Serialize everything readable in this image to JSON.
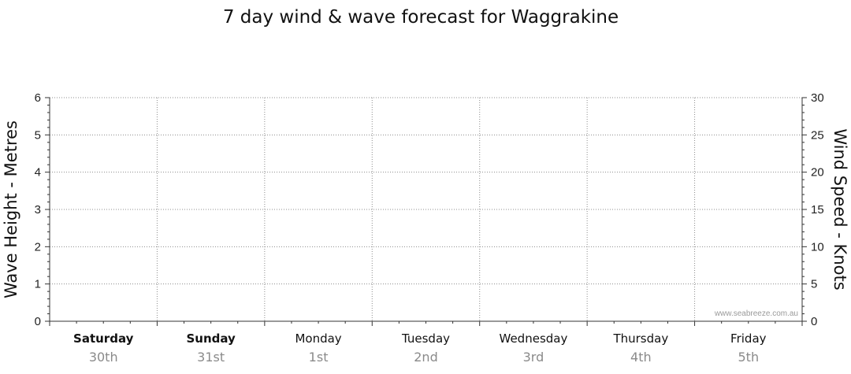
{
  "chart_data": {
    "type": "line",
    "title": "7 day wind & wave forecast for Waggrakine",
    "ylabel_left": "Wave Height - Metres",
    "ylabel_right": "Wind Speed - Knots",
    "ylim_left": [
      0,
      6
    ],
    "ylim_right": [
      0,
      30
    ],
    "left_ticks": [
      "0",
      "1",
      "2",
      "3",
      "4",
      "5",
      "6"
    ],
    "right_ticks": [
      "0",
      "5",
      "10",
      "15",
      "20",
      "25",
      "30"
    ],
    "days": [
      {
        "name": "Saturday",
        "date": "30th",
        "bold": true
      },
      {
        "name": "Sunday",
        "date": "31st",
        "bold": true
      },
      {
        "name": "Monday",
        "date": "1st",
        "bold": false
      },
      {
        "name": "Tuesday",
        "date": "2nd",
        "bold": false
      },
      {
        "name": "Wednesday",
        "date": "3rd",
        "bold": false
      },
      {
        "name": "Thursday",
        "date": "4th",
        "bold": false
      },
      {
        "name": "Friday",
        "date": "5th",
        "bold": false
      }
    ],
    "grid": true,
    "series": [],
    "watermark": "www.seabreeze.com.au"
  }
}
